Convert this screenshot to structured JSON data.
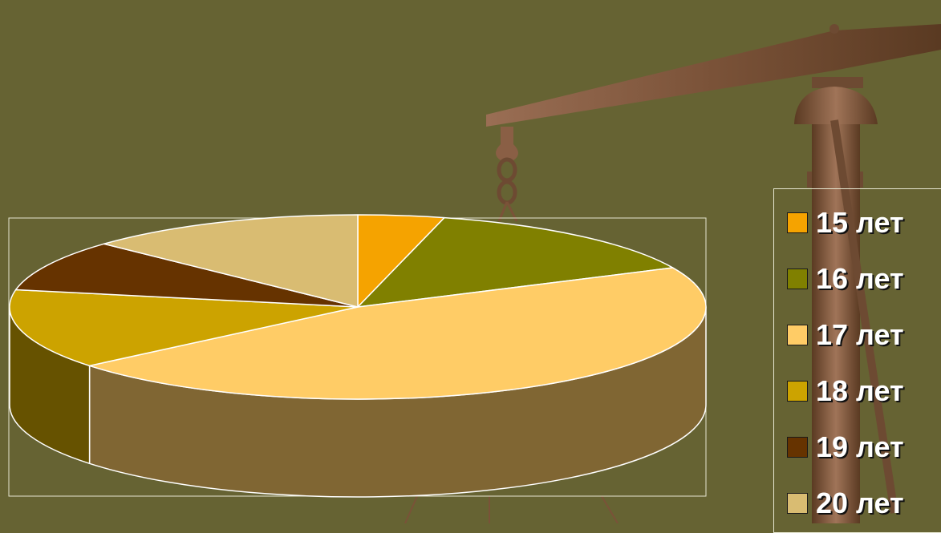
{
  "chart_data": {
    "type": "pie",
    "variant": "3d",
    "categories": [
      "15 лет",
      "16 лет",
      "17 лет",
      "18 лет",
      "19 лет",
      "20 лет"
    ],
    "values": [
      4,
      14,
      46,
      14,
      9,
      13
    ],
    "colors": [
      "#F5A300",
      "#808000",
      "#FFCC66",
      "#CCA300",
      "#663300",
      "#D9BC72"
    ],
    "legend_position": "right",
    "title": ""
  },
  "legend": {
    "items": [
      {
        "label": "15 лет",
        "color": "#F5A300"
      },
      {
        "label": "16 лет",
        "color": "#808000"
      },
      {
        "label": "17 лет",
        "color": "#FFCC66"
      },
      {
        "label": "18 лет",
        "color": "#CCA300"
      },
      {
        "label": "19 лет",
        "color": "#663300"
      },
      {
        "label": "20 лет",
        "color": "#D9BC72"
      }
    ]
  },
  "colors": {
    "background": "#666333",
    "scale_dark": "#5a3a22",
    "scale_light": "#9a6e54"
  }
}
